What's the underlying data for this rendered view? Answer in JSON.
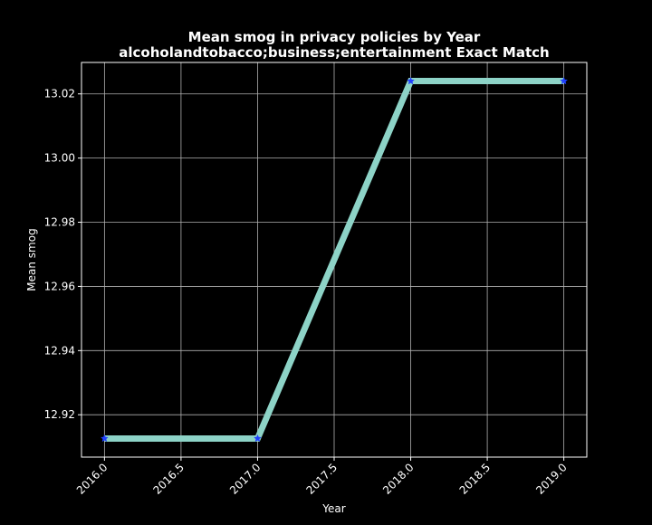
{
  "chart_data": {
    "type": "line",
    "title": "Mean smog in privacy policies by Year",
    "subtitle": "alcoholandtobacco;business;entertainment Exact Match",
    "xlabel": "Year",
    "ylabel": "Mean smog",
    "x": [
      2016,
      2017,
      2018,
      2019
    ],
    "series": [
      {
        "values": [
          12.9126,
          12.9126,
          13.024,
          13.024
        ]
      }
    ],
    "xlim": [
      2015.85,
      2019.15
    ],
    "ylim": [
      12.9068,
      13.0298
    ],
    "xticks": [
      2016.0,
      2016.5,
      2017.0,
      2017.5,
      2018.0,
      2018.5,
      2019.0
    ],
    "xtick_labels": [
      "2016.0",
      "2016.5",
      "2017.0",
      "2017.5",
      "2018.0",
      "2018.5",
      "2019.0"
    ],
    "yticks": [
      12.92,
      12.94,
      12.96,
      12.98,
      13.0,
      13.02
    ],
    "ytick_labels": [
      "12.92",
      "12.94",
      "12.96",
      "12.98",
      "13.00",
      "13.02"
    ],
    "grid": true,
    "colors": {
      "background": "#000000",
      "line": "#8dd3c7",
      "marker": "#1f3fff",
      "grid": "#b0b0b0",
      "text": "#ffffff"
    }
  }
}
